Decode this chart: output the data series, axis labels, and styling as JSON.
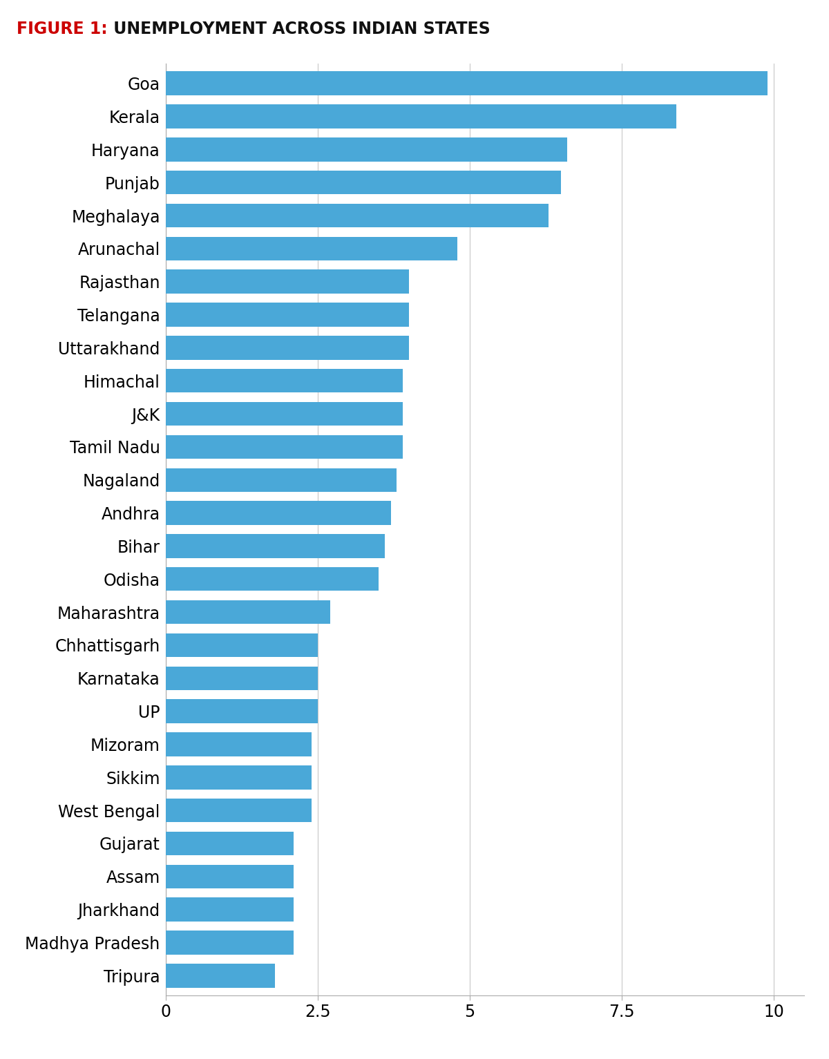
{
  "title_bold": "FIGURE 1:",
  "title_rest": " UNEMPLOYMENT ACROSS INDIAN STATES",
  "states": [
    "Goa",
    "Kerala",
    "Haryana",
    "Punjab",
    "Meghalaya",
    "Arunachal",
    "Rajasthan",
    "Telangana",
    "Uttarakhand",
    "Himachal",
    "J&K",
    "Tamil Nadu",
    "Nagaland",
    "Andhra",
    "Bihar",
    "Odisha",
    "Maharashtra",
    "Chhattisgarh",
    "Karnataka",
    "UP",
    "Mizoram",
    "Sikkim",
    "West Bengal",
    "Gujarat",
    "Assam",
    "Jharkhand",
    "Madhya Pradesh",
    "Tripura"
  ],
  "values": [
    9.9,
    8.4,
    6.6,
    6.5,
    6.3,
    4.8,
    4.0,
    4.0,
    4.0,
    3.9,
    3.9,
    3.9,
    3.8,
    3.7,
    3.6,
    3.5,
    2.7,
    2.5,
    2.5,
    2.5,
    2.4,
    2.4,
    2.4,
    2.1,
    2.1,
    2.1,
    2.1,
    1.8
  ],
  "bar_color": "#4AA8D8",
  "background_color": "#FFFFFF",
  "grid_color": "#CCCCCC",
  "title_color_bold": "#CC0000",
  "title_color_rest": "#111111",
  "xlim": [
    0,
    10.5
  ],
  "xticks": [
    0,
    2.5,
    5,
    7.5,
    10
  ],
  "ytick_fontsize": 17,
  "xtick_fontsize": 17,
  "title_fontsize": 17,
  "bar_height": 0.72,
  "figsize": [
    12,
    15.33
  ]
}
